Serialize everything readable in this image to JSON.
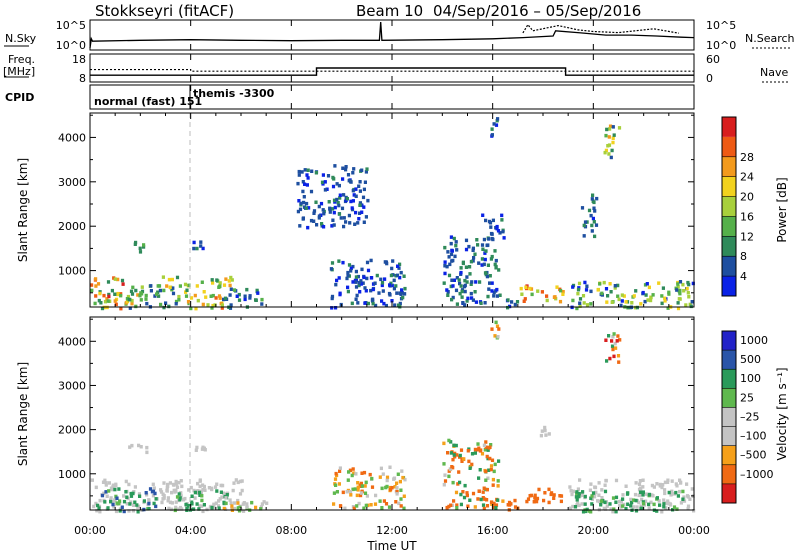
{
  "header": {
    "title": "Stokkseyri (fitACF)",
    "beam": "Beam 10",
    "date_range": "04/Sep/2016 – 05/Sep/2016"
  },
  "strip_noise": {
    "left_label": "N.Sky",
    "right_label": "N.Search",
    "left_ticks": [
      "10^5",
      "10^0"
    ],
    "right_ticks": [
      "10^5",
      "10^0"
    ]
  },
  "strip_freq": {
    "left_label_1": "Freq.",
    "left_label_2": "[MHz]",
    "right_label": "Nave",
    "left_ticks": [
      "18",
      "8"
    ],
    "right_ticks": [
      "60",
      "0"
    ]
  },
  "strip_cpid": {
    "label": "CPID",
    "mode_1": "normal (fast) 151",
    "mode_2": "themis -3300"
  },
  "colors": {
    "power": [
      "#0a22e6",
      "#1e4fa0",
      "#2f8a5a",
      "#55b04a",
      "#a8d03c",
      "#f2d21e",
      "#f39a1c",
      "#ee5a14",
      "#d81e1e"
    ],
    "velocity": [
      "#d81e1e",
      "#f06a14",
      "#f5a01a",
      "#c4c4c4",
      "#c4c4c4",
      "#5fb84e",
      "#2a9a5a",
      "#2a55a8",
      "#2222c8"
    ]
  },
  "chart_data": [
    {
      "type": "line",
      "name": "noise-strip",
      "x_range": [
        0,
        24
      ],
      "y_scale": "log",
      "series": [
        {
          "name": "N.Sky",
          "style": "solid",
          "x": [
            0,
            0.05,
            0.1,
            2,
            4,
            6,
            8,
            10,
            11.5,
            11.55,
            11.6,
            14,
            16,
            17.2,
            18.4,
            18.5,
            19.5,
            20.5,
            21.5,
            22.5,
            23.5,
            24
          ],
          "y": [
            1,
            60,
            20,
            30,
            40,
            30,
            25,
            30,
            30,
            100000,
            30,
            40,
            60,
            100,
            200,
            2000,
            800,
            300,
            300,
            200,
            120,
            100
          ]
        },
        {
          "name": "N.Search",
          "style": "dotted",
          "x": [
            17.2,
            17.4,
            17.6,
            18.6,
            19.0,
            19.4,
            20.0,
            21.0,
            22.4,
            23.4
          ],
          "y": [
            800,
            30000,
            2000,
            20000,
            8000,
            3000,
            1500,
            900,
            5000,
            700
          ]
        }
      ]
    },
    {
      "type": "line",
      "name": "frequency-strip",
      "x_range": [
        0,
        24
      ],
      "series": [
        {
          "name": "Freq",
          "style": "solid",
          "units": "MHz",
          "x": [
            0,
            9,
            9,
            18.9,
            18.9,
            24
          ],
          "y": [
            10,
            10,
            13,
            13,
            10,
            10
          ]
        },
        {
          "name": "Nave",
          "style": "dotted",
          "x": [
            0,
            4,
            4,
            24
          ],
          "y": [
            26,
            26,
            22,
            22
          ]
        }
      ]
    },
    {
      "type": "heatmap",
      "name": "power",
      "xlabel": "Time UT",
      "ylabel": "Slant Range [km]",
      "x_ticks": [
        "00:00",
        "04:00",
        "08:00",
        "12:00",
        "16:00",
        "20:00",
        "00:00"
      ],
      "x_range": [
        0,
        24
      ],
      "y_range": [
        180,
        4550
      ],
      "y_ticks": [
        1000,
        2000,
        3000,
        4000
      ],
      "colorbar": {
        "label": "Power [dB]",
        "ticks": [
          4,
          8,
          12,
          16,
          20,
          24,
          28
        ],
        "range": [
          0,
          32
        ]
      },
      "regions": [
        {
          "t0": 0.0,
          "t1": 1.3,
          "r0": 180,
          "r1": 880,
          "v0": 8,
          "v1": 30
        },
        {
          "t0": 0.6,
          "t1": 2.0,
          "r0": 180,
          "r1": 500,
          "v0": 12,
          "v1": 30
        },
        {
          "t0": 1.3,
          "t1": 3.5,
          "r0": 180,
          "r1": 700,
          "v0": 4,
          "v1": 16
        },
        {
          "t0": 3.4,
          "t1": 5.2,
          "r0": 180,
          "r1": 600,
          "v0": 8,
          "v1": 28
        },
        {
          "t0": 2.8,
          "t1": 5.8,
          "r0": 650,
          "r1": 900,
          "v0": 8,
          "v1": 24
        },
        {
          "t0": 5.2,
          "t1": 6.8,
          "r0": 180,
          "r1": 650,
          "v0": 2,
          "v1": 12
        },
        {
          "t0": 4.0,
          "t1": 4.6,
          "r0": 1500,
          "r1": 1700,
          "v0": 2,
          "v1": 8
        },
        {
          "t0": 1.7,
          "t1": 2.1,
          "r0": 1450,
          "r1": 1700,
          "v0": 4,
          "v1": 12
        },
        {
          "t0": 17.0,
          "t1": 18.8,
          "r0": 330,
          "r1": 700,
          "v0": 12,
          "v1": 30
        },
        {
          "t0": 16.2,
          "t1": 17.0,
          "r0": 200,
          "r1": 500,
          "v0": 2,
          "v1": 10
        },
        {
          "t0": 19.0,
          "t1": 24.0,
          "r0": 180,
          "r1": 800,
          "v0": 2,
          "v1": 20
        },
        {
          "t0": 14.0,
          "t1": 16.2,
          "r0": 250,
          "r1": 1800,
          "v0": 2,
          "v1": 10
        },
        {
          "t0": 9.5,
          "t1": 12.5,
          "r0": 200,
          "r1": 1300,
          "v0": 2,
          "v1": 8
        },
        {
          "t0": 15.5,
          "t1": 16.4,
          "r0": 1600,
          "r1": 2300,
          "v0": 2,
          "v1": 8
        },
        {
          "t0": 19.5,
          "t1": 20.1,
          "r0": 1800,
          "r1": 2800,
          "v0": 2,
          "v1": 10
        },
        {
          "t0": 20.4,
          "t1": 21.0,
          "r0": 3500,
          "r1": 4300,
          "v0": 6,
          "v1": 24
        },
        {
          "t0": 15.9,
          "t1": 16.2,
          "r0": 3800,
          "r1": 4500,
          "v0": 2,
          "v1": 10
        },
        {
          "t0": 8.2,
          "t1": 11.0,
          "r0": 2000,
          "r1": 3400,
          "v0": 2,
          "v1": 8
        }
      ]
    },
    {
      "type": "heatmap",
      "name": "velocity",
      "xlabel": "Time UT",
      "ylabel": "Slant Range [km]",
      "x_ticks": [
        "00:00",
        "04:00",
        "08:00",
        "12:00",
        "16:00",
        "20:00",
        "00:00"
      ],
      "x_range": [
        0,
        24
      ],
      "y_range": [
        180,
        4550
      ],
      "y_ticks": [
        1000,
        2000,
        3000,
        4000
      ],
      "colorbar": {
        "label": "Velocity [m s⁻¹]",
        "ticks": [
          "1000",
          "500",
          "100",
          "25",
          "–25",
          "–100",
          "–500",
          "–1000"
        ]
      },
      "regions": [
        {
          "t0": 0.0,
          "t1": 3.6,
          "r0": 180,
          "r1": 900,
          "v0": -25,
          "v1": 25
        },
        {
          "t0": 0.2,
          "t1": 2.6,
          "r0": 180,
          "r1": 700,
          "v0": 25,
          "v1": 700
        },
        {
          "t0": 3.0,
          "t1": 6.2,
          "r0": 180,
          "r1": 900,
          "v0": -25,
          "v1": 25
        },
        {
          "t0": 3.3,
          "t1": 5.4,
          "r0": 200,
          "r1": 650,
          "v0": 25,
          "v1": 500
        },
        {
          "t0": 1.5,
          "t1": 2.2,
          "r0": 1500,
          "r1": 1700,
          "v0": -25,
          "v1": 25
        },
        {
          "t0": 4.1,
          "t1": 4.6,
          "r0": 1550,
          "r1": 1650,
          "v0": -25,
          "v1": 25
        },
        {
          "t0": 5.0,
          "t1": 7.0,
          "r0": 180,
          "r1": 500,
          "v0": -60,
          "v1": 100
        },
        {
          "t0": 17.0,
          "t1": 18.8,
          "r0": 330,
          "r1": 700,
          "v0": -400,
          "v1": -100
        },
        {
          "t0": 15.4,
          "t1": 17.0,
          "r0": 220,
          "r1": 500,
          "v0": -300,
          "v1": -50
        },
        {
          "t0": 19.0,
          "t1": 24.0,
          "r0": 180,
          "r1": 900,
          "v0": -25,
          "v1": 25
        },
        {
          "t0": 19.2,
          "t1": 23.5,
          "r0": 180,
          "r1": 650,
          "v0": 25,
          "v1": 300
        },
        {
          "t0": 14.0,
          "t1": 16.2,
          "r0": 250,
          "r1": 1800,
          "v0": -400,
          "v1": 200
        },
        {
          "t0": 9.5,
          "t1": 12.5,
          "r0": 250,
          "r1": 1200,
          "v0": -200,
          "v1": 100
        },
        {
          "t0": 20.4,
          "t1": 21.0,
          "r0": 3500,
          "r1": 4300,
          "v0": -800,
          "v1": 300
        },
        {
          "t0": 17.8,
          "t1": 18.2,
          "r0": 1900,
          "r1": 2100,
          "v0": -25,
          "v1": 25
        },
        {
          "t0": 15.9,
          "t1": 16.2,
          "r0": 3800,
          "r1": 4500,
          "v0": -200,
          "v1": 100
        }
      ]
    }
  ]
}
